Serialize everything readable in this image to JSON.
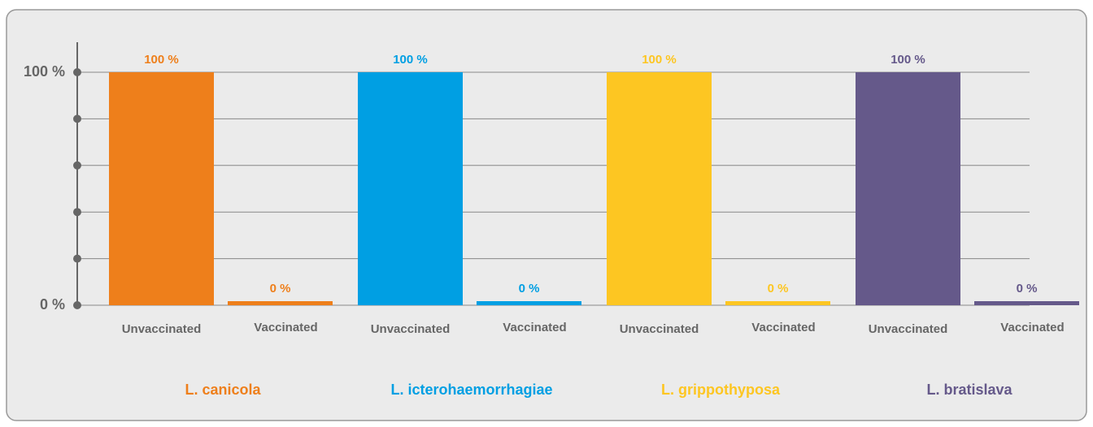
{
  "chart_data": {
    "type": "bar",
    "ylim": [
      0,
      100
    ],
    "yticks": [
      {
        "value": 0,
        "label": "0 %"
      },
      {
        "value": 100,
        "label": "100 %"
      }
    ],
    "minor_yticks": [
      20,
      40,
      60,
      80
    ],
    "grid": true,
    "groups": [
      {
        "name": "L. canicola",
        "color": "#ee7f1b",
        "categories": [
          "Unvaccinated",
          "Vaccinated"
        ],
        "values": [
          100,
          0
        ],
        "value_labels": [
          "100 %",
          "0 %"
        ]
      },
      {
        "name": "L. icterohaemorrhagiae",
        "color": "#009fe3",
        "categories": [
          "Unvaccinated",
          "Vaccinated"
        ],
        "values": [
          100,
          0
        ],
        "value_labels": [
          "100 %",
          "0 %"
        ]
      },
      {
        "name": "L. grippothyposa",
        "color": "#fdc622",
        "categories": [
          "Unvaccinated",
          "Vaccinated"
        ],
        "values": [
          100,
          0
        ],
        "value_labels": [
          "100 %",
          "0 %"
        ]
      },
      {
        "name": "L. bratislava",
        "color": "#65598a",
        "categories": [
          "Unvaccinated",
          "Vaccinated"
        ],
        "values": [
          100,
          0
        ],
        "value_labels": [
          "100 %",
          "0 %"
        ]
      }
    ]
  }
}
